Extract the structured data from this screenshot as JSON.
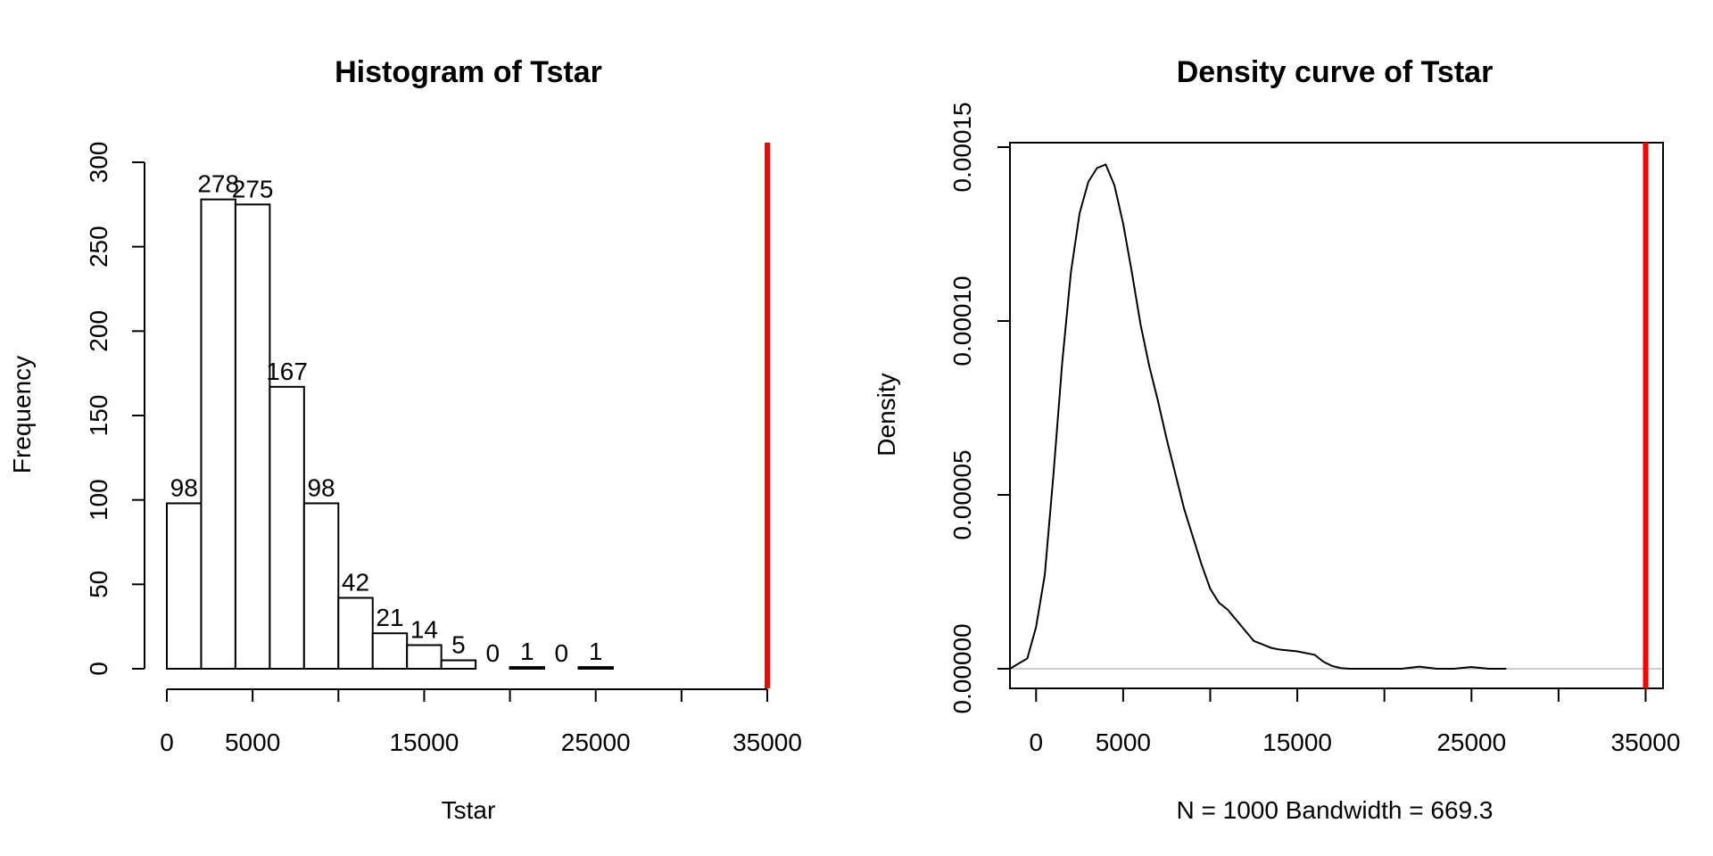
{
  "chart_data": [
    {
      "type": "bar",
      "title": "Histogram of Tstar",
      "xlabel": "Tstar",
      "ylabel": "Frequency",
      "bin_edges": [
        0,
        2000,
        4000,
        6000,
        8000,
        10000,
        12000,
        14000,
        16000,
        18000,
        20000,
        22000,
        24000,
        26000
      ],
      "values": [
        98,
        278,
        275,
        167,
        98,
        42,
        21,
        14,
        5,
        0,
        1,
        0,
        1
      ],
      "value_labels": [
        "98",
        "278",
        "275",
        "167",
        "98",
        "42",
        "21",
        "14",
        "5",
        "0",
        "1",
        "0",
        "1"
      ],
      "xlim": [
        0,
        35000
      ],
      "ylim": [
        0,
        300
      ],
      "x_ticks": [
        0,
        5000,
        10000,
        15000,
        20000,
        25000,
        30000,
        35000
      ],
      "x_tick_labels": [
        "0",
        "5000",
        "",
        "15000",
        "",
        "25000",
        "",
        "35000"
      ],
      "y_ticks": [
        0,
        50,
        100,
        150,
        200,
        250,
        300
      ],
      "y_tick_labels": [
        "0",
        "50",
        "100",
        "150",
        "200",
        "250",
        "300"
      ],
      "reference_line": {
        "x": 35000,
        "color": "#ff0000"
      }
    },
    {
      "type": "line",
      "title": "Density curve of Tstar",
      "xlabel": "N = 1000   Bandwidth = 669.3",
      "ylabel": "Density",
      "x": [
        -1500,
        -500,
        0,
        500,
        1000,
        1500,
        2000,
        2500,
        3000,
        3500,
        4000,
        4500,
        5000,
        5500,
        6000,
        6500,
        7000,
        7500,
        8000,
        8500,
        9000,
        9500,
        10000,
        10500,
        11000,
        11500,
        12000,
        12500,
        13000,
        13500,
        14000,
        15000,
        16000,
        16500,
        17000,
        17500,
        18000,
        19000,
        20000,
        21000,
        22000,
        23000,
        24000,
        25000,
        26000,
        27000
      ],
      "y": [
        0.0,
        3e-06,
        1.2e-05,
        2.7e-05,
        5.6e-05,
        8.8e-05,
        0.000114,
        0.000131,
        0.00014,
        0.000144,
        0.000145,
        0.000139,
        0.000128,
        0.000114,
        9.9e-05,
        8.7e-05,
        7.7e-05,
        6.6e-05,
        5.6e-05,
        4.6e-05,
        3.8e-05,
        3e-05,
        2.3e-05,
        1.9e-05,
        1.7e-05,
        1.4e-05,
        1.1e-05,
        8e-06,
        7e-06,
        6e-06,
        5.5e-06,
        5e-06,
        4e-06,
        2e-06,
        8e-07,
        2e-07,
        0.0,
        0.0,
        0.0,
        0.0,
        6e-07,
        0.0,
        0.0,
        5e-07,
        0.0,
        0.0
      ],
      "xlim": [
        -1500,
        36000
      ],
      "ylim": [
        0,
        0.00015
      ],
      "x_ticks": [
        0,
        5000,
        10000,
        15000,
        20000,
        25000,
        30000,
        35000
      ],
      "x_tick_labels": [
        "0",
        "5000",
        "",
        "15000",
        "",
        "25000",
        "",
        "35000"
      ],
      "y_ticks": [
        0,
        5e-05,
        0.0001,
        0.00015
      ],
      "y_tick_labels": [
        "0.00000",
        "0.00005",
        "0.00010",
        "0.00015"
      ],
      "reference_line": {
        "x": 35000,
        "color": "#ff0000"
      }
    }
  ]
}
